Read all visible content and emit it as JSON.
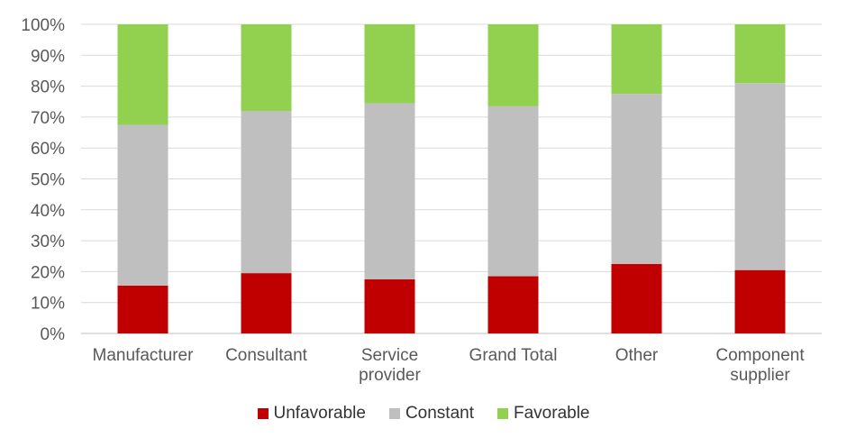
{
  "chart_data": {
    "type": "bar",
    "stacked": true,
    "percent": true,
    "categories": [
      [
        "Manufacturer"
      ],
      [
        "Consultant"
      ],
      [
        "Service",
        "provider"
      ],
      [
        "Grand Total"
      ],
      [
        "Other"
      ],
      [
        "Component",
        "supplier"
      ]
    ],
    "series": [
      {
        "name": "Unfavorable",
        "color": "#c00000",
        "values": [
          15.5,
          19.5,
          17.5,
          18.5,
          22.5,
          20.5
        ]
      },
      {
        "name": "Constant",
        "color": "#bfbfbf",
        "values": [
          52,
          52.5,
          57,
          55,
          55,
          60.5
        ]
      },
      {
        "name": "Favorable",
        "color": "#92d050",
        "values": [
          32.5,
          28,
          25.5,
          26.5,
          22.5,
          19
        ]
      }
    ],
    "ylim": [
      0,
      100
    ],
    "yticks": [
      "0%",
      "10%",
      "20%",
      "30%",
      "40%",
      "50%",
      "60%",
      "70%",
      "80%",
      "90%",
      "100%"
    ],
    "grid": true,
    "legend_position": "bottom"
  }
}
